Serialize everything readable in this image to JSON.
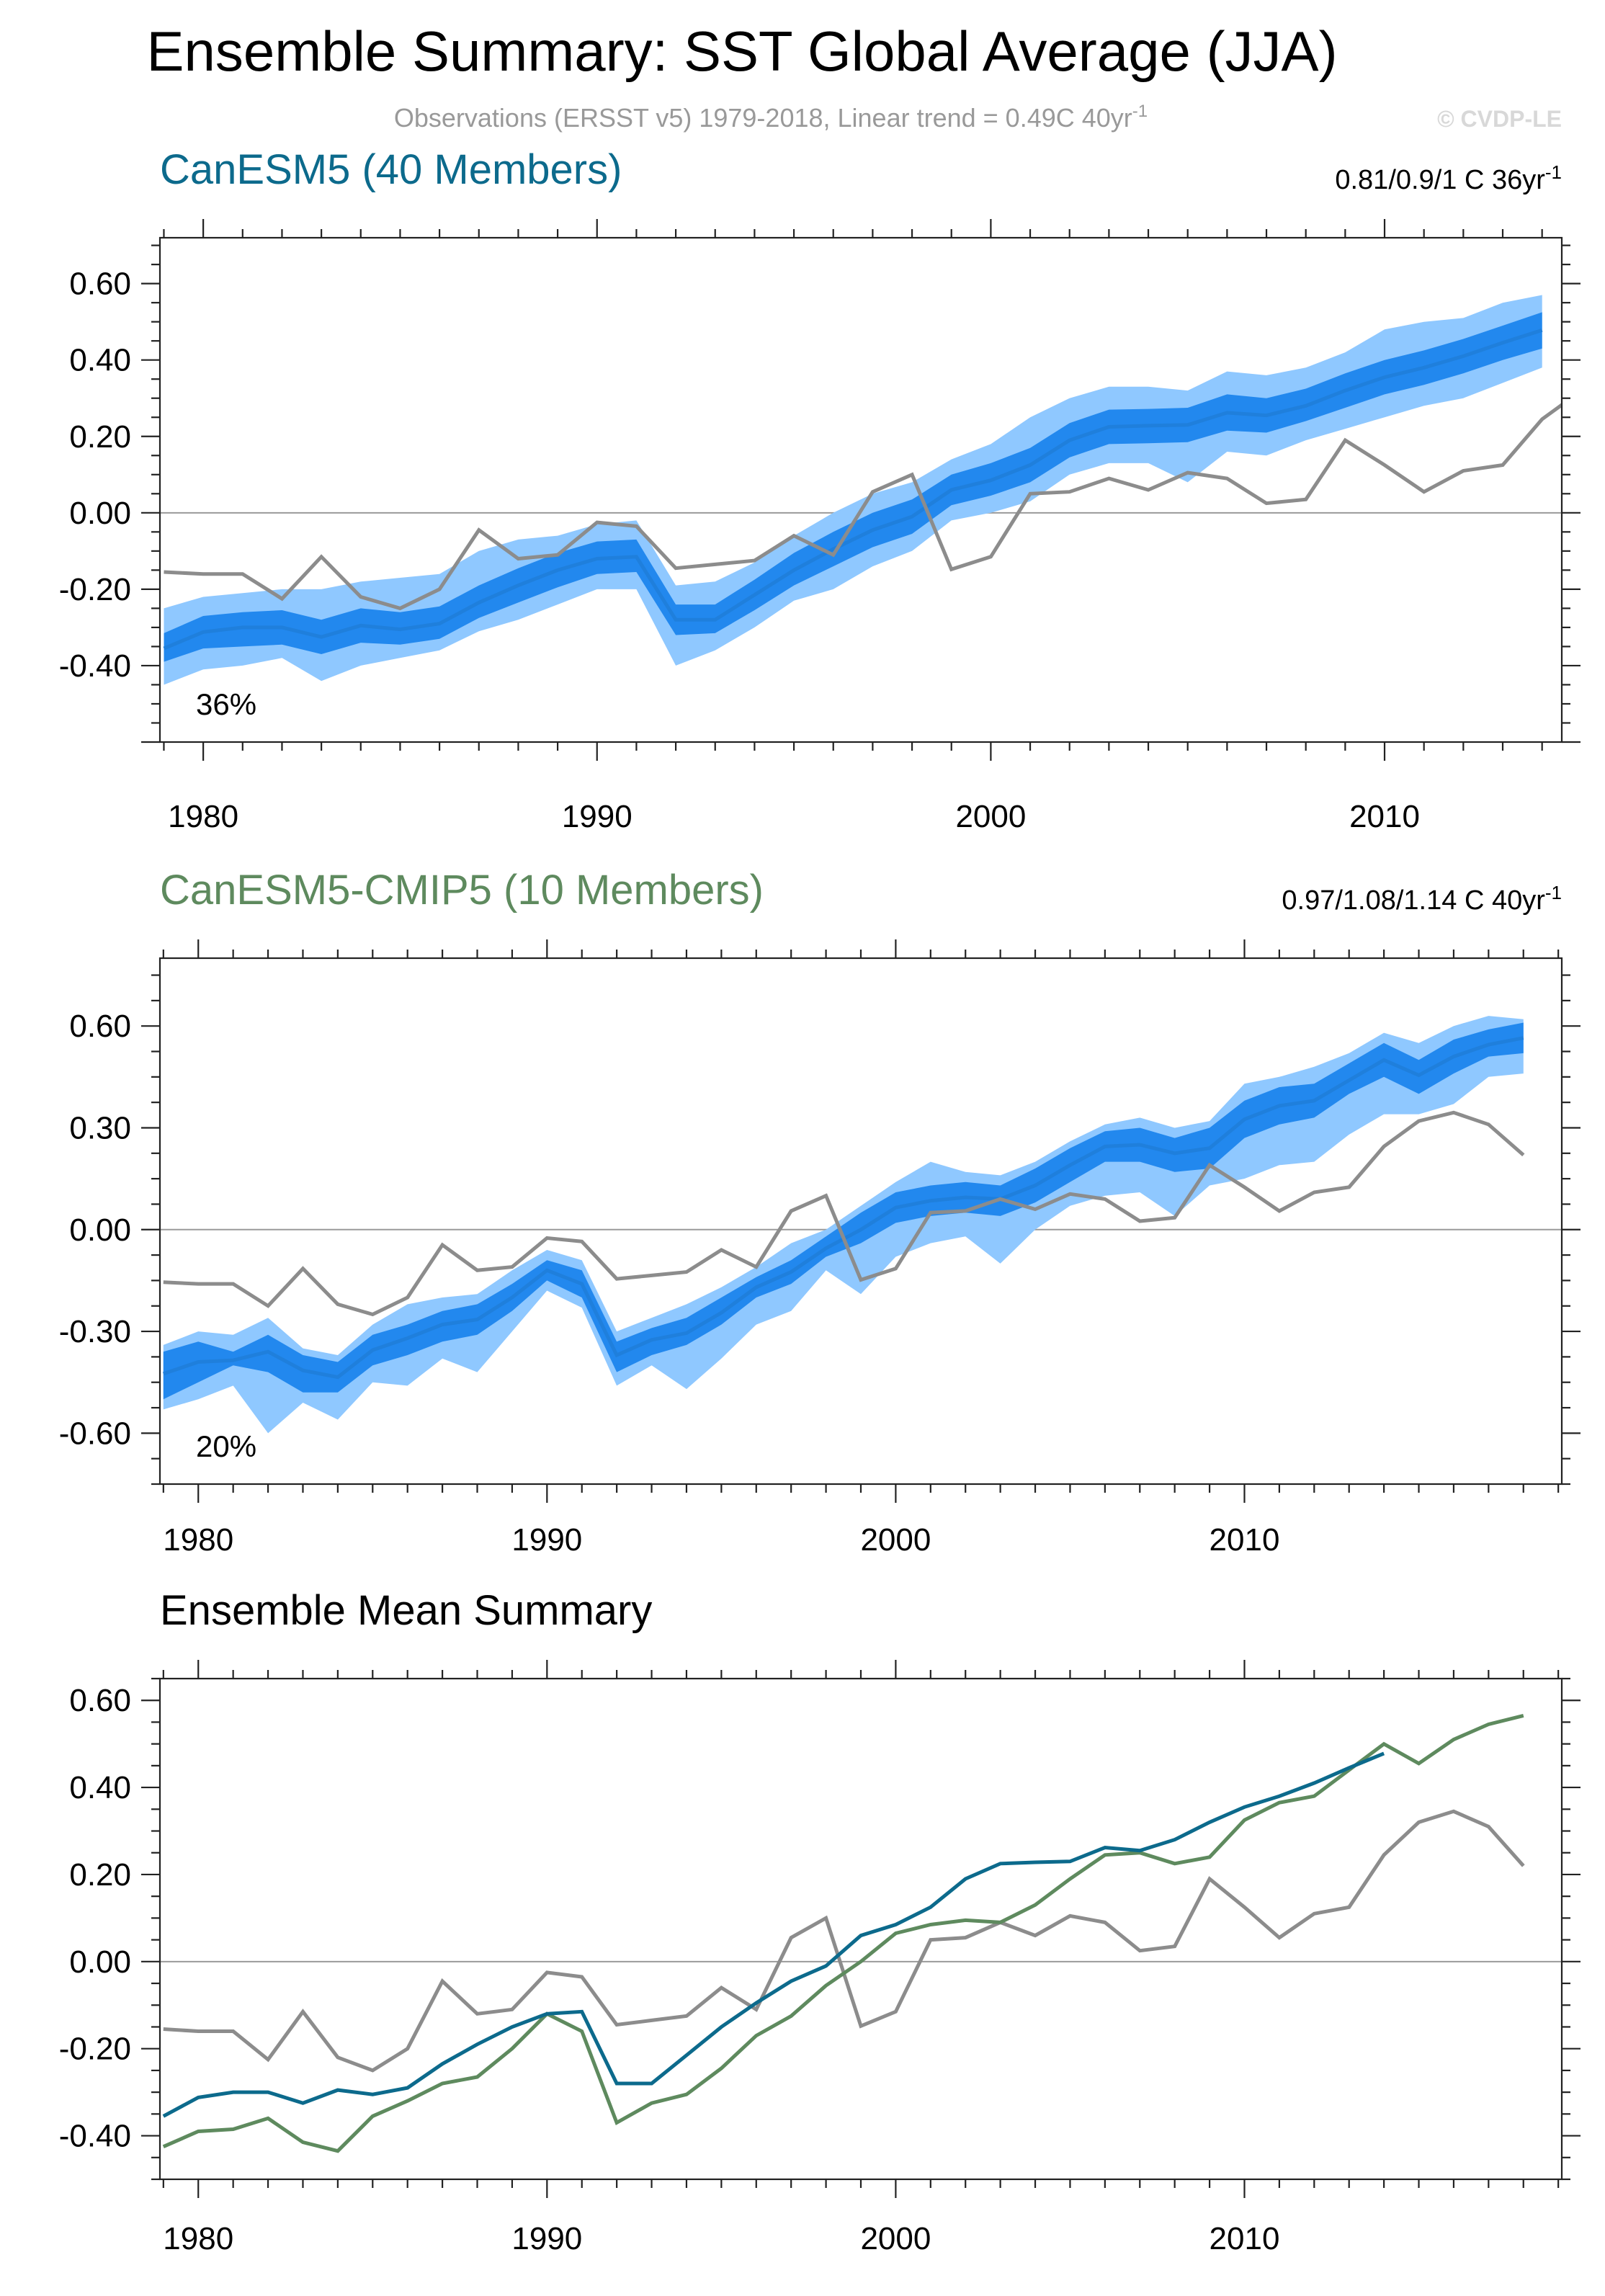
{
  "title": "Ensemble Summary: SST Global Average (JJA)",
  "subtitle": "Observations (ERSST v5) 1979-2018, Linear trend = 0.49C 40yr",
  "subtitle_sup": "-1",
  "watermark": "© CVDP-LE",
  "colors": {
    "obs": "#8c8c8c",
    "band_outer": "#8fc8ff",
    "band_inner": "#2288ee",
    "ens_mean": "#1f7fdc",
    "canesm5": "#0c6a8c",
    "canesm5_cmip5": "#5e8a5e"
  },
  "observations": {
    "name": "Observations (ERSST v5)",
    "x": [
      1979,
      1980,
      1981,
      1982,
      1983,
      1984,
      1985,
      1986,
      1987,
      1988,
      1989,
      1990,
      1991,
      1992,
      1993,
      1994,
      1995,
      1996,
      1997,
      1998,
      1999,
      2000,
      2001,
      2002,
      2003,
      2004,
      2005,
      2006,
      2007,
      2008,
      2009,
      2010,
      2011,
      2012,
      2013,
      2014,
      2015,
      2016,
      2017,
      2018
    ],
    "y": [
      -0.155,
      -0.16,
      -0.16,
      -0.225,
      -0.115,
      -0.22,
      -0.25,
      -0.2,
      -0.045,
      -0.12,
      -0.11,
      -0.025,
      -0.035,
      -0.145,
      -0.135,
      -0.125,
      -0.06,
      -0.11,
      0.055,
      0.1,
      -0.148,
      -0.115,
      0.05,
      0.055,
      0.09,
      0.06,
      0.105,
      0.09,
      0.025,
      0.035,
      0.19,
      0.125,
      0.055,
      0.11,
      0.125,
      0.245,
      0.32,
      0.345,
      0.31,
      0.22
    ]
  },
  "chart_data": [
    {
      "type": "line",
      "panel_title": "CanESM5 (40 Members)",
      "trend_label": "0.81/0.9/1 C 36yr",
      "trend_sup": "-1",
      "percentile_label": "36%",
      "xlim": [
        1978.9,
        2014.5
      ],
      "ylim": [
        -0.6,
        0.72
      ],
      "xticks": [
        1980,
        1990,
        2000,
        2010
      ],
      "xtick_labels": [
        "1980",
        "1990",
        "2000",
        "2010"
      ],
      "yticks": [
        -0.4,
        -0.2,
        0.0,
        0.2,
        0.4,
        0.6
      ],
      "ytick_labels": [
        "-0.40",
        "-0.20",
        "0.00",
        "0.20",
        "0.40",
        "0.60"
      ],
      "series": [
        {
          "name": "CanESM5",
          "x": [
            1979,
            1980,
            1981,
            1982,
            1983,
            1984,
            1985,
            1986,
            1987,
            1988,
            1989,
            1990,
            1991,
            1992,
            1993,
            1994,
            1995,
            1996,
            1997,
            1998,
            1999,
            2000,
            2001,
            2002,
            2003,
            2004,
            2005,
            2006,
            2007,
            2008,
            2009,
            2010,
            2011,
            2012,
            2013,
            2014
          ],
          "mean": [
            -0.355,
            -0.312,
            -0.3,
            -0.3,
            -0.325,
            -0.295,
            -0.305,
            -0.29,
            -0.235,
            -0.19,
            -0.15,
            -0.12,
            -0.115,
            -0.28,
            -0.28,
            -0.215,
            -0.15,
            -0.095,
            -0.045,
            -0.01,
            0.06,
            0.085,
            0.125,
            0.19,
            0.225,
            0.228,
            0.23,
            0.262,
            0.255,
            0.28,
            0.32,
            0.355,
            0.38,
            0.41,
            0.445,
            0.478
          ],
          "p25": [
            -0.39,
            -0.355,
            -0.35,
            -0.345,
            -0.37,
            -0.34,
            -0.345,
            -0.33,
            -0.275,
            -0.235,
            -0.195,
            -0.16,
            -0.155,
            -0.32,
            -0.315,
            -0.255,
            -0.19,
            -0.14,
            -0.09,
            -0.055,
            0.02,
            0.045,
            0.08,
            0.145,
            0.18,
            0.182,
            0.185,
            0.215,
            0.21,
            0.24,
            0.275,
            0.31,
            0.335,
            0.365,
            0.4,
            0.43
          ],
          "p75": [
            -0.315,
            -0.27,
            -0.26,
            -0.255,
            -0.28,
            -0.25,
            -0.26,
            -0.245,
            -0.19,
            -0.145,
            -0.105,
            -0.075,
            -0.07,
            -0.24,
            -0.24,
            -0.175,
            -0.105,
            -0.05,
            0.0,
            0.035,
            0.1,
            0.13,
            0.17,
            0.235,
            0.27,
            0.272,
            0.275,
            0.31,
            0.3,
            0.325,
            0.365,
            0.4,
            0.425,
            0.455,
            0.49,
            0.525
          ],
          "min": [
            -0.45,
            -0.41,
            -0.4,
            -0.38,
            -0.44,
            -0.4,
            -0.38,
            -0.36,
            -0.31,
            -0.28,
            -0.24,
            -0.2,
            -0.2,
            -0.4,
            -0.36,
            -0.3,
            -0.23,
            -0.2,
            -0.14,
            -0.1,
            -0.02,
            0.0,
            0.03,
            0.1,
            0.13,
            0.13,
            0.08,
            0.16,
            0.15,
            0.19,
            0.22,
            0.25,
            0.28,
            0.3,
            0.34,
            0.38
          ],
          "max": [
            -0.25,
            -0.22,
            -0.21,
            -0.2,
            -0.2,
            -0.18,
            -0.17,
            -0.16,
            -0.1,
            -0.07,
            -0.06,
            -0.03,
            -0.02,
            -0.19,
            -0.18,
            -0.13,
            -0.06,
            0.0,
            0.05,
            0.08,
            0.14,
            0.18,
            0.25,
            0.3,
            0.33,
            0.33,
            0.32,
            0.37,
            0.36,
            0.38,
            0.42,
            0.48,
            0.5,
            0.51,
            0.55,
            0.57
          ]
        },
        {
          "name": "Observations (ERSST v5)",
          "ref": "observations"
        }
      ]
    },
    {
      "type": "line",
      "panel_title": "CanESM5-CMIP5 (10 Members)",
      "trend_label": "0.97/1.08/1.14 C 40yr",
      "trend_sup": "-1",
      "percentile_label": "20%",
      "xlim": [
        1978.9,
        2019.1
      ],
      "ylim": [
        -0.75,
        0.8
      ],
      "xticks": [
        1980,
        1990,
        2000,
        2010
      ],
      "xtick_labels": [
        "1980",
        "1990",
        "2000",
        "2010"
      ],
      "yticks": [
        -0.6,
        -0.3,
        0.0,
        0.3,
        0.6
      ],
      "ytick_labels": [
        "-0.60",
        "-0.30",
        "0.00",
        "0.30",
        "0.60"
      ],
      "series": [
        {
          "name": "CanESM5-CMIP5",
          "x": [
            1979,
            1980,
            1981,
            1982,
            1983,
            1984,
            1985,
            1986,
            1987,
            1988,
            1989,
            1990,
            1991,
            1992,
            1993,
            1994,
            1995,
            1996,
            1997,
            1998,
            1999,
            2000,
            2001,
            2002,
            2003,
            2004,
            2005,
            2006,
            2007,
            2008,
            2009,
            2010,
            2011,
            2012,
            2013,
            2014,
            2015,
            2016,
            2017,
            2018
          ],
          "mean": [
            -0.425,
            -0.39,
            -0.385,
            -0.36,
            -0.415,
            -0.435,
            -0.355,
            -0.32,
            -0.28,
            -0.265,
            -0.2,
            -0.12,
            -0.16,
            -0.37,
            -0.325,
            -0.305,
            -0.245,
            -0.17,
            -0.125,
            -0.055,
            0.0,
            0.065,
            0.085,
            0.095,
            0.09,
            0.13,
            0.19,
            0.245,
            0.25,
            0.225,
            0.24,
            0.325,
            0.365,
            0.38,
            0.44,
            0.5,
            0.455,
            0.51,
            0.545,
            0.565
          ],
          "p25": [
            -0.5,
            -0.45,
            -0.4,
            -0.42,
            -0.48,
            -0.48,
            -0.4,
            -0.37,
            -0.33,
            -0.31,
            -0.24,
            -0.15,
            -0.2,
            -0.42,
            -0.37,
            -0.34,
            -0.28,
            -0.2,
            -0.16,
            -0.08,
            -0.04,
            0.02,
            0.04,
            0.05,
            0.04,
            0.08,
            0.14,
            0.2,
            0.2,
            0.17,
            0.18,
            0.27,
            0.31,
            0.33,
            0.4,
            0.45,
            0.4,
            0.46,
            0.51,
            0.52
          ],
          "p75": [
            -0.36,
            -0.33,
            -0.36,
            -0.31,
            -0.37,
            -0.39,
            -0.31,
            -0.28,
            -0.24,
            -0.22,
            -0.16,
            -0.09,
            -0.12,
            -0.33,
            -0.29,
            -0.26,
            -0.2,
            -0.14,
            -0.09,
            -0.02,
            0.05,
            0.11,
            0.13,
            0.14,
            0.13,
            0.18,
            0.24,
            0.29,
            0.3,
            0.27,
            0.3,
            0.38,
            0.42,
            0.43,
            0.49,
            0.55,
            0.5,
            0.56,
            0.59,
            0.61
          ],
          "min": [
            -0.53,
            -0.5,
            -0.46,
            -0.6,
            -0.51,
            -0.56,
            -0.45,
            -0.46,
            -0.38,
            -0.42,
            -0.3,
            -0.18,
            -0.23,
            -0.46,
            -0.4,
            -0.47,
            -0.38,
            -0.28,
            -0.24,
            -0.12,
            -0.19,
            -0.08,
            -0.04,
            -0.02,
            -0.1,
            0.0,
            0.07,
            0.1,
            0.11,
            0.04,
            0.13,
            0.15,
            0.19,
            0.2,
            0.28,
            0.34,
            0.34,
            0.37,
            0.45,
            0.46
          ],
          "max": [
            -0.34,
            -0.3,
            -0.31,
            -0.26,
            -0.35,
            -0.37,
            -0.28,
            -0.22,
            -0.2,
            -0.19,
            -0.12,
            -0.06,
            -0.09,
            -0.3,
            -0.26,
            -0.22,
            -0.17,
            -0.11,
            -0.04,
            0.0,
            0.07,
            0.14,
            0.2,
            0.17,
            0.16,
            0.2,
            0.26,
            0.31,
            0.33,
            0.3,
            0.32,
            0.43,
            0.45,
            0.48,
            0.52,
            0.58,
            0.55,
            0.6,
            0.63,
            0.62
          ]
        },
        {
          "name": "Observations (ERSST v5)",
          "ref": "observations"
        }
      ]
    },
    {
      "type": "line",
      "panel_title": "Ensemble Mean Summary",
      "xlim": [
        1978.9,
        2019.1
      ],
      "ylim": [
        -0.5,
        0.65
      ],
      "xticks": [
        1980,
        1990,
        2000,
        2010
      ],
      "xtick_labels": [
        "1980",
        "1990",
        "2000",
        "2010"
      ],
      "yticks": [
        -0.4,
        -0.2,
        0.0,
        0.2,
        0.4,
        0.6
      ],
      "ytick_labels": [
        "-0.40",
        "-0.20",
        "0.00",
        "0.20",
        "0.40",
        "0.60"
      ],
      "series": [
        {
          "name": "CanESM5",
          "ref": "ens0"
        },
        {
          "name": "CanESM5-CMIP5",
          "ref": "ens1"
        },
        {
          "name": "Observations (ERSST v5)",
          "ref": "observations"
        }
      ]
    }
  ]
}
